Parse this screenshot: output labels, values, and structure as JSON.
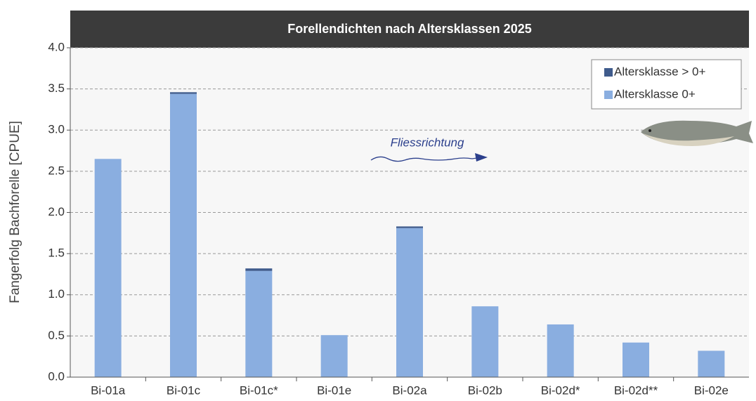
{
  "chart_data": {
    "type": "stacked_bar",
    "title": "Forellendichten nach Altersklassen 2025",
    "y_label": "Fangerfolg Bachforelle [CPUE]",
    "annotation": "Fliessrichtung",
    "categories": [
      "Bi-01a",
      "Bi-01c",
      "Bi-01c*",
      "Bi-01e",
      "Bi-02a",
      "Bi-02b",
      "Bi-02d*",
      "Bi-02d**",
      "Bi-02e"
    ],
    "series": [
      {
        "name": "Altersklasse 0+",
        "color": "#8aaee0",
        "values": [
          2.65,
          3.44,
          1.29,
          0.51,
          1.81,
          0.86,
          0.64,
          0.42,
          0.32
        ]
      },
      {
        "name": "Altersklasse > 0+",
        "color": "#3f5b8c",
        "values": [
          0,
          0.02,
          0.03,
          0,
          0.02,
          0,
          0,
          0,
          0
        ]
      }
    ],
    "ylim": [
      0,
      4
    ],
    "yticks": [
      {
        "value": 0,
        "label": "0.0"
      },
      0.5,
      {
        "value": 1,
        "label": "1.0"
      },
      1.5,
      {
        "value": 2,
        "label": "2.0"
      },
      2.5,
      {
        "value": 3,
        "label": "3.0"
      },
      3.5,
      {
        "value": 4,
        "label": "4.0"
      }
    ],
    "grid": true
  }
}
